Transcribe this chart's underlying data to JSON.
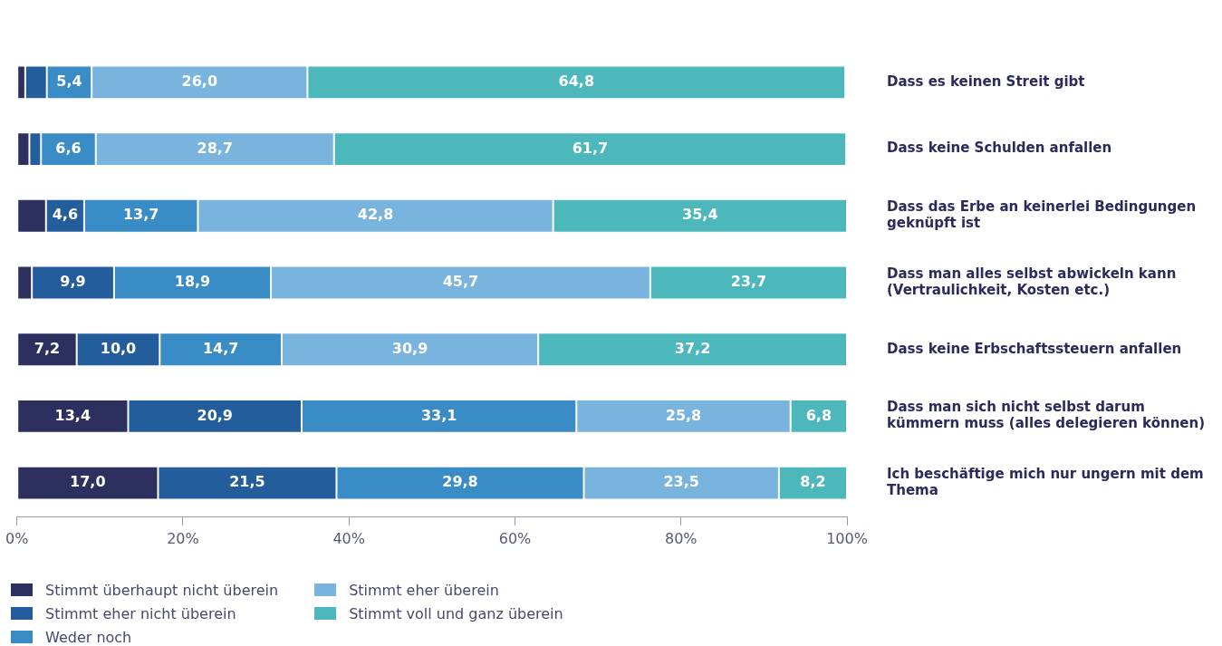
{
  "chart_data": {
    "type": "bar",
    "orientation": "horizontal",
    "stacked": true,
    "categories": [
      "Dass es keinen Streit gibt",
      "Dass keine Schulden anfallen",
      "Dass das Erbe an keinerlei Bedingungen geknüpft ist",
      "Dass man alles selbst abwickeln kann (Vertraulichkeit, Kosten etc.)",
      "Dass keine Erbschaftssteuern anfallen",
      "Dass man sich nicht selbst darum kümmern muss (alles delegieren können)",
      "Ich beschäftige mich nur ungern mit dem Thema"
    ],
    "series": [
      {
        "name": "Stimmt überhaupt nicht überein",
        "color": "#2d2f5e",
        "values": [
          1.0,
          1.5,
          3.5,
          1.8,
          7.2,
          13.4,
          17.0
        ],
        "value_labels": [
          null,
          null,
          null,
          null,
          "7,2",
          "13,4",
          "17,0"
        ]
      },
      {
        "name": "Stimmt eher nicht überein",
        "color": "#245d9c",
        "values": [
          2.6,
          1.4,
          4.6,
          9.9,
          10.0,
          20.9,
          21.5
        ],
        "value_labels": [
          null,
          null,
          "4,6",
          "9,9",
          "10,0",
          "20,9",
          "21,5"
        ]
      },
      {
        "name": "Weder noch",
        "color": "#3a8cc7",
        "values": [
          5.4,
          6.6,
          13.7,
          18.9,
          14.7,
          33.1,
          29.8
        ],
        "value_labels": [
          "5,4",
          "6,6",
          "13,7",
          "18,9",
          "14,7",
          "33,1",
          "29,8"
        ]
      },
      {
        "name": "Stimmt eher überein",
        "color": "#79b4df",
        "values": [
          26.0,
          28.7,
          42.8,
          45.7,
          30.9,
          25.8,
          23.5
        ],
        "value_labels": [
          "26,0",
          "28,7",
          "42,8",
          "45,7",
          "30,9",
          "25,8",
          "23,5"
        ]
      },
      {
        "name": "Stimmt voll und ganz überein",
        "color": "#4db8bb",
        "values": [
          64.8,
          61.7,
          35.4,
          23.7,
          37.2,
          6.8,
          8.2
        ],
        "value_labels": [
          "64,8",
          "61,7",
          "35,4",
          "23,7",
          "37,2",
          "6,8",
          "8,2"
        ]
      }
    ],
    "xlim": [
      0,
      100
    ],
    "xticks": [
      {
        "value": 0,
        "label": "0%"
      },
      {
        "value": 20,
        "label": "20%"
      },
      {
        "value": 40,
        "label": "40%"
      },
      {
        "value": 60,
        "label": "60%"
      },
      {
        "value": 80,
        "label": "80%"
      },
      {
        "value": 100,
        "label": "100%"
      }
    ],
    "grid": false,
    "legend": "bottom left"
  }
}
